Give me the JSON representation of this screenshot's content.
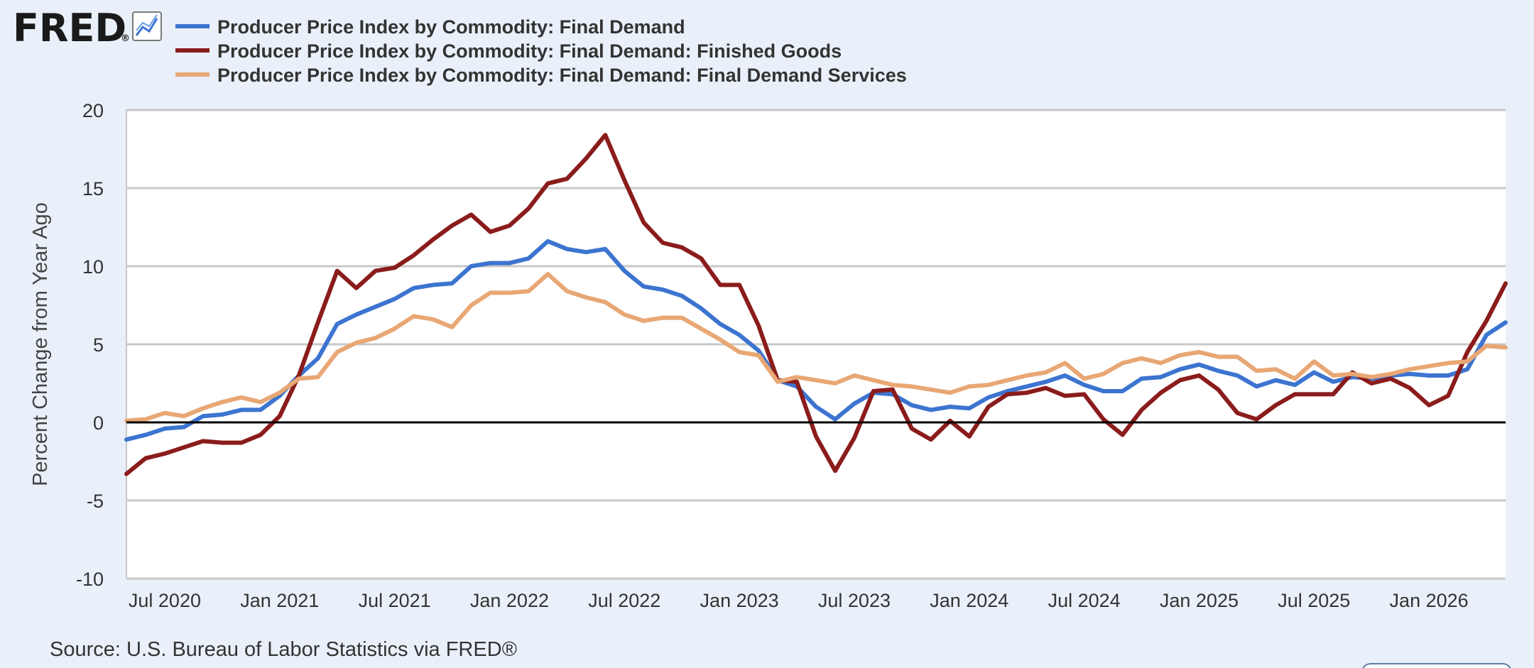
{
  "header": {
    "logo_text": "FRED",
    "logo_registered": "®",
    "chart_icon": "line-chart-icon"
  },
  "source": "Source: U.S. Bureau of Labor Statistics via FRED®",
  "colors": {
    "background": "#e9f0f9",
    "plot_background": "#ffffff",
    "gridline": "#c8c8c8",
    "zero_line": "#000000"
  },
  "chart_data": {
    "type": "line",
    "ylabel": "Percent Change from Year Ago",
    "ylim": [
      -10,
      20
    ],
    "yticks": [
      -10,
      -5,
      0,
      5,
      10,
      15,
      20
    ],
    "xlim": [
      "2020-05",
      "2026-05"
    ],
    "xticks": [
      "2020-07",
      "2021-01",
      "2021-07",
      "2022-01",
      "2022-07",
      "2023-01",
      "2023-07",
      "2024-01",
      "2024-07",
      "2025-01",
      "2025-07",
      "2026-01"
    ],
    "xtick_labels": [
      "Jul 2020",
      "Jan 2021",
      "Jul 2021",
      "Jan 2022",
      "Jul 2022",
      "Jan 2023",
      "Jul 2023",
      "Jan 2024",
      "Jul 2024",
      "Jan 2025",
      "Jul 2025",
      "Jan 2026"
    ],
    "grid": true,
    "legend_position": "top-left",
    "x": [
      "2020-05",
      "2020-06",
      "2020-07",
      "2020-08",
      "2020-09",
      "2020-10",
      "2020-11",
      "2020-12",
      "2021-01",
      "2021-02",
      "2021-03",
      "2021-04",
      "2021-05",
      "2021-06",
      "2021-07",
      "2021-08",
      "2021-09",
      "2021-10",
      "2021-11",
      "2021-12",
      "2022-01",
      "2022-02",
      "2022-03",
      "2022-04",
      "2022-05",
      "2022-06",
      "2022-07",
      "2022-08",
      "2022-09",
      "2022-10",
      "2022-11",
      "2022-12",
      "2023-01",
      "2023-02",
      "2023-03",
      "2023-04",
      "2023-05",
      "2023-06",
      "2023-07",
      "2023-08",
      "2023-09",
      "2023-10",
      "2023-11",
      "2023-12",
      "2024-01",
      "2024-02",
      "2024-03",
      "2024-04",
      "2024-05",
      "2024-06",
      "2024-07",
      "2024-08",
      "2024-09",
      "2024-10",
      "2024-11",
      "2024-12",
      "2025-01",
      "2025-02",
      "2025-03",
      "2025-04",
      "2025-05",
      "2025-06",
      "2025-07",
      "2025-08",
      "2025-09",
      "2025-10",
      "2025-11",
      "2025-12",
      "2026-01",
      "2026-02",
      "2026-03",
      "2026-04",
      "2026-05"
    ],
    "series": [
      {
        "name": "Producer Price Index by Commodity: Final Demand",
        "color": "#3c74d0",
        "values": [
          -1.1,
          -0.8,
          -0.4,
          -0.3,
          0.4,
          0.5,
          0.8,
          0.8,
          1.7,
          3.0,
          4.1,
          6.3,
          6.9,
          7.4,
          7.9,
          8.6,
          8.8,
          8.9,
          10.0,
          10.2,
          10.2,
          10.5,
          11.6,
          11.1,
          10.9,
          11.1,
          9.7,
          8.7,
          8.5,
          8.1,
          7.3,
          6.3,
          5.6,
          4.6,
          2.7,
          2.3,
          1.0,
          0.2,
          1.2,
          1.9,
          1.8,
          1.1,
          0.8,
          1.0,
          0.9,
          1.6,
          2.0,
          2.3,
          2.6,
          3.0,
          2.4,
          2.0,
          2.0,
          2.8,
          2.9,
          3.4,
          3.7,
          3.3,
          3.0,
          2.3,
          2.7,
          2.4,
          3.2,
          2.6,
          2.9,
          2.8,
          3.0,
          3.1,
          3.0,
          3.0,
          3.4,
          5.6,
          6.4
        ]
      },
      {
        "name": "Producer Price Index by Commodity: Final Demand: Finished Goods",
        "color": "#8b1c1c",
        "values": [
          -3.3,
          -2.3,
          -2.0,
          -1.6,
          -1.2,
          -1.3,
          -1.3,
          -0.8,
          0.4,
          3.0,
          6.4,
          9.7,
          8.6,
          9.7,
          9.9,
          10.7,
          11.7,
          12.6,
          13.3,
          12.2,
          12.6,
          13.7,
          15.3,
          15.6,
          16.9,
          18.4,
          15.5,
          12.8,
          11.5,
          11.2,
          10.5,
          8.8,
          8.8,
          6.2,
          2.7,
          2.6,
          -0.9,
          -3.1,
          -1.0,
          2.0,
          2.1,
          -0.4,
          -1.1,
          0.1,
          -0.9,
          1.0,
          1.8,
          1.9,
          2.2,
          1.7,
          1.8,
          0.2,
          -0.8,
          0.8,
          1.9,
          2.7,
          3.0,
          2.1,
          0.6,
          0.2,
          1.1,
          1.8,
          1.8,
          1.8,
          3.2,
          2.5,
          2.8,
          2.2,
          1.1,
          1.7,
          4.5,
          6.5,
          8.9
        ]
      },
      {
        "name": "Producer Price Index by Commodity: Final Demand: Final Demand Services",
        "color": "#e8a774",
        "values": [
          0.1,
          0.2,
          0.6,
          0.4,
          0.9,
          1.3,
          1.6,
          1.3,
          1.9,
          2.8,
          2.9,
          4.5,
          5.1,
          5.4,
          6.0,
          6.8,
          6.6,
          6.1,
          7.5,
          8.3,
          8.3,
          8.4,
          9.5,
          8.4,
          8.0,
          7.7,
          6.9,
          6.5,
          6.7,
          6.7,
          6.0,
          5.3,
          4.5,
          4.3,
          2.6,
          2.9,
          2.7,
          2.5,
          3.0,
          2.7,
          2.4,
          2.3,
          2.1,
          1.9,
          2.3,
          2.4,
          2.7,
          3.0,
          3.2,
          3.8,
          2.8,
          3.1,
          3.8,
          4.1,
          3.8,
          4.3,
          4.5,
          4.2,
          4.2,
          3.3,
          3.4,
          2.8,
          3.9,
          3.0,
          3.1,
          2.9,
          3.1,
          3.4,
          3.6,
          3.8,
          3.9,
          4.9,
          4.8
        ]
      }
    ]
  }
}
